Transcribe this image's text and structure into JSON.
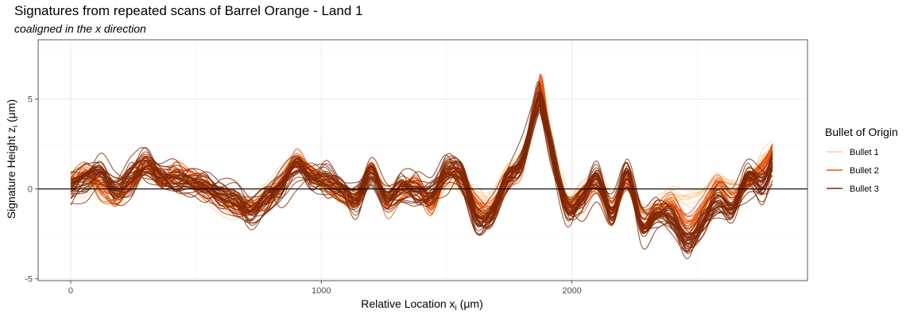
{
  "colors": {
    "bullet1": "#FDD0A2",
    "bullet2": "#E6550D",
    "bullet3": "#7F2704",
    "grid_major": "#EBEBEB",
    "grid_minor": "#F4F4F4",
    "panel_border": "#333333",
    "zero_line": "#000000"
  },
  "chart_data": {
    "type": "line",
    "title": "Signatures from repeated scans of Barrel Orange - Land 1",
    "subtitle": "coaligned in the x direction",
    "xlabel_prefix": "Relative Location x",
    "xlabel_sub": "i",
    "xlabel_unit": "(μm)",
    "ylabel_prefix": "Signature Height z",
    "ylabel_sub": "i",
    "ylabel_unit": "(μm)",
    "xlim": [
      -130,
      2940
    ],
    "ylim": [
      -5.1,
      8.3
    ],
    "x_ticks": [
      0,
      1000,
      2000
    ],
    "x_tick_labels": [
      "0",
      "1000",
      "2000"
    ],
    "y_ticks": [
      -5,
      0,
      5
    ],
    "y_tick_labels": [
      "-5",
      "0",
      "5"
    ],
    "x_minor_ticks": [
      500,
      1500,
      2500
    ],
    "y_minor_ticks": [
      -2.5,
      2.5,
      7.5
    ],
    "grid": true,
    "hline": 0,
    "legend": {
      "title": "Bullet of Origin",
      "position": "right",
      "entries": [
        "Bullet 1",
        "Bullet 2",
        "Bullet 3"
      ]
    },
    "x": [
      0,
      60,
      120,
      180,
      240,
      300,
      360,
      420,
      480,
      540,
      600,
      660,
      720,
      780,
      840,
      900,
      960,
      1020,
      1080,
      1140,
      1200,
      1260,
      1320,
      1380,
      1440,
      1500,
      1560,
      1620,
      1680,
      1740,
      1800,
      1860,
      1880,
      1920,
      1980,
      2040,
      2100,
      2160,
      2220,
      2280,
      2340,
      2400,
      2460,
      2520,
      2580,
      2640,
      2700,
      2760,
      2800
    ],
    "series": [
      {
        "name": "Bullet 1",
        "curve_count": 12,
        "spread": 0.6,
        "values": [
          0.2,
          0.3,
          0.5,
          0.2,
          0.8,
          1.2,
          0.6,
          0.4,
          0.3,
          -0.2,
          -0.6,
          -1.0,
          -0.9,
          -0.3,
          0.6,
          1.5,
          0.8,
          0.1,
          -0.1,
          -0.3,
          0.9,
          -0.4,
          0.2,
          0.1,
          -0.6,
          0.4,
          0.2,
          -0.4,
          -0.7,
          0.8,
          1.8,
          4.8,
          5.8,
          2.6,
          -0.6,
          -0.1,
          0.5,
          -0.7,
          0.2,
          -1.2,
          -1.0,
          -0.4,
          -0.6,
          -0.3,
          0.5,
          0.2,
          0.4,
          1.5,
          2.0
        ]
      },
      {
        "name": "Bullet 2",
        "curve_count": 18,
        "spread": 0.55,
        "values": [
          0.4,
          0.9,
          0.1,
          -0.6,
          0.2,
          1.4,
          0.5,
          0.8,
          0.6,
          0.1,
          -0.4,
          -0.8,
          -1.1,
          -0.6,
          0.3,
          1.6,
          0.9,
          0.3,
          -0.3,
          -0.6,
          1.2,
          -0.7,
          -0.2,
          0.3,
          -0.9,
          0.9,
          0.6,
          -0.8,
          -1.2,
          0.5,
          1.5,
          5.0,
          5.7,
          2.2,
          -0.7,
          -0.4,
          0.2,
          -1.2,
          0.4,
          -1.8,
          -1.3,
          -0.8,
          -2.0,
          -1.1,
          0.2,
          -0.6,
          0.4,
          1.2,
          2.2
        ]
      },
      {
        "name": "Bullet 3",
        "curve_count": 34,
        "spread": 0.9,
        "values": [
          0.3,
          0.7,
          0.9,
          -0.1,
          0.6,
          1.3,
          0.7,
          0.7,
          0.4,
          0.2,
          -0.5,
          -0.8,
          -1.3,
          -0.5,
          0.2,
          1.3,
          0.6,
          0.4,
          -0.1,
          -0.5,
          1.0,
          -0.4,
          0.1,
          -0.2,
          -0.4,
          0.9,
          0.8,
          -1.6,
          -1.3,
          0.6,
          1.6,
          4.5,
          4.6,
          2.0,
          -1.0,
          -0.4,
          0.6,
          -1.4,
          0.7,
          -2.1,
          -1.4,
          -1.6,
          -2.8,
          -1.8,
          -0.8,
          -1.2,
          0.5,
          0.2,
          1.5
        ]
      }
    ]
  }
}
